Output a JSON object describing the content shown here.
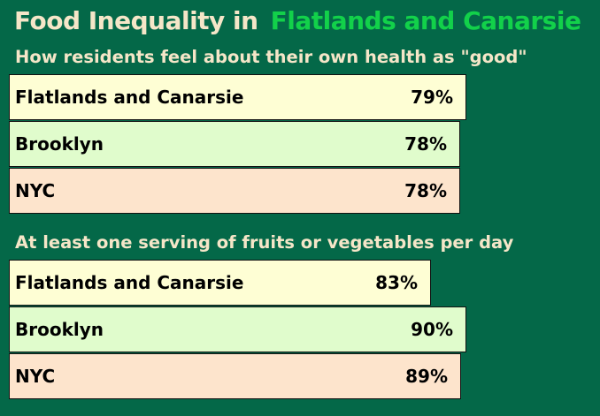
{
  "title": {
    "lead": "Food Inequality in",
    "place": "Flatlands and Canarsie"
  },
  "chart_data": [
    {
      "type": "bar",
      "title": "How residents feel about their own health as \"good\"",
      "categories": [
        "Flatlands and Canarsie",
        "Brooklyn",
        "NYC"
      ],
      "values": [
        79,
        78,
        78
      ],
      "value_labels": [
        "79%",
        "78%",
        "78%"
      ],
      "unit": "%",
      "orientation": "horizontal",
      "colors": [
        "#fefed4",
        "#e0fccc",
        "#fde4cc"
      ]
    },
    {
      "type": "bar",
      "title": "At least one serving of fruits or vegetables per day",
      "categories": [
        "Flatlands and Canarsie",
        "Brooklyn",
        "NYC"
      ],
      "values": [
        83,
        90,
        89
      ],
      "value_labels": [
        "83%",
        "90%",
        "89%"
      ],
      "unit": "%",
      "orientation": "horizontal",
      "colors": [
        "#fefed4",
        "#e0fccc",
        "#fde4cc"
      ]
    }
  ]
}
